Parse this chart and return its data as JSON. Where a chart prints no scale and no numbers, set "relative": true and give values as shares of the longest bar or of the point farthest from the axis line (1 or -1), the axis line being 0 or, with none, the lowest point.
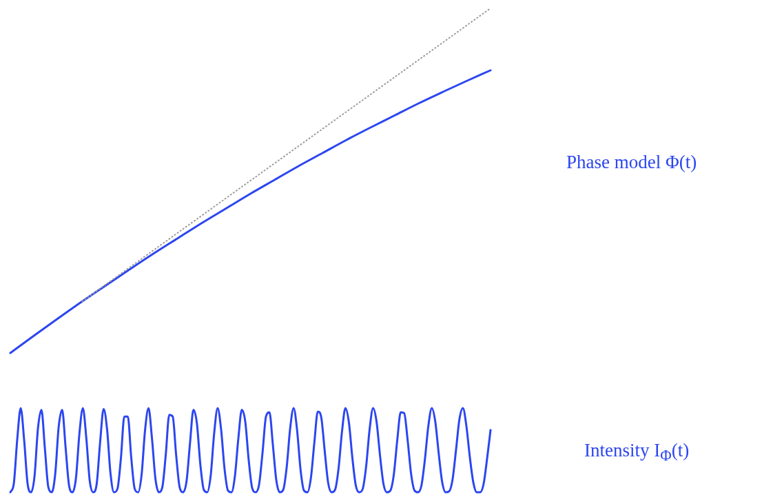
{
  "chart_data": [
    {
      "type": "line",
      "relative": true,
      "marker": "none",
      "categories": [
        null,
        null,
        null,
        null,
        null,
        null,
        null,
        null,
        null,
        null,
        null,
        null,
        null,
        null,
        null,
        null,
        null,
        null,
        null,
        null,
        null
      ],
      "series": [
        {
          "name": "Phase model Φ(t)",
          "color": "#2c46f0",
          "values": [
            0,
            0.051,
            0.101,
            0.15,
            0.197,
            0.244,
            0.29,
            0.334,
            0.378,
            0.42,
            0.462,
            0.502,
            0.542,
            0.58,
            0.618,
            0.654,
            0.689,
            0.724,
            0.757,
            0.789,
            0.82
          ]
        },
        {
          "color": "#999999",
          "line_style": "dotted",
          "values": [
            null,
            null,
            null,
            0.15,
            0.2,
            0.25,
            0.3,
            0.35,
            0.4,
            0.45,
            0.5,
            0.55,
            0.6,
            0.65,
            0.7,
            0.75,
            0.8,
            0.85,
            0.9,
            0.95,
            1.0
          ]
        }
      ]
    },
    {
      "type": "line",
      "relative": true,
      "marker": "none",
      "categories": [
        null,
        null,
        null,
        null,
        null,
        null,
        null,
        null,
        null,
        null,
        null,
        null,
        null,
        null,
        null,
        null,
        null,
        null,
        null,
        null,
        null,
        null,
        null,
        null,
        null,
        null,
        null,
        null,
        null,
        null,
        null,
        null,
        null,
        null,
        null,
        null,
        null,
        null,
        null,
        null,
        null,
        null,
        null,
        null,
        null,
        null,
        null,
        null,
        null,
        null,
        null,
        null,
        null,
        null,
        null,
        null,
        null,
        null,
        null,
        null,
        null,
        null,
        null,
        null,
        null,
        null,
        null,
        null,
        null,
        null,
        null,
        null,
        null,
        null,
        null,
        null,
        null,
        null,
        null,
        null,
        null,
        null,
        null,
        null,
        null,
        null,
        null,
        null,
        null,
        null,
        null,
        null,
        null,
        null,
        null,
        null,
        null,
        null,
        null,
        null,
        null,
        null,
        null,
        null,
        null,
        null,
        null,
        null,
        null,
        null,
        null,
        null,
        null,
        null,
        null,
        null,
        null,
        null,
        null,
        null,
        null,
        null,
        null,
        null,
        null,
        null,
        null,
        null,
        null,
        null,
        null,
        null,
        null,
        null,
        null,
        null,
        null,
        null,
        null,
        null
      ],
      "series": [
        {
          "name": "Intensity I$_{Φ}$(t)",
          "color": "#2c46f0",
          "values": [
            0,
            0.1,
            0.63,
            1,
            0.62,
            0.1,
            0,
            0.19,
            0.76,
            0.98,
            0.52,
            0.06,
            0,
            0.22,
            0.78,
            0.98,
            0.53,
            0.08,
            0,
            0.17,
            0.7,
            1,
            0.64,
            0.13,
            0,
            0.1,
            0.6,
            0.99,
            0.75,
            0.22,
            0,
            0.04,
            0.4,
            0.9,
            0.9,
            0.41,
            0.04,
            0,
            0.21,
            0.74,
            1,
            0.64,
            0.16,
            0,
            0.06,
            0.45,
            0.92,
            0.9,
            0.44,
            0.06,
            0,
            0.13,
            0.58,
            0.98,
            0.82,
            0.33,
            0.03,
            0,
            0.2,
            0.7,
            1,
            0.75,
            0.28,
            0.02,
            0,
            0.19,
            0.64,
            0.98,
            0.84,
            0.38,
            0.05,
            0,
            0.09,
            0.47,
            0.9,
            0.95,
            0.56,
            0.14,
            0,
            0.03,
            0.3,
            0.76,
            1,
            0.74,
            0.27,
            0.02,
            0,
            0.17,
            0.59,
            0.96,
            0.89,
            0.49,
            0.11,
            0,
            0.03,
            0.28,
            0.72,
            1,
            0.83,
            0.41,
            0.08,
            0,
            0.04,
            0.31,
            0.75,
            1,
            0.84,
            0.44,
            0.1,
            0,
            0.02,
            0.21,
            0.62,
            0.95,
            0.94,
            0.62,
            0.22,
            0.02,
            0,
            0.08,
            0.39,
            0.79,
            1,
            0.84,
            0.46,
            0.12,
            0,
            0.01,
            0.15,
            0.5,
            0.87,
            1,
            0.79,
            0.42,
            0.12,
            0,
            0,
            0.1,
            0.4,
            0.74
          ]
        }
      ]
    }
  ]
}
